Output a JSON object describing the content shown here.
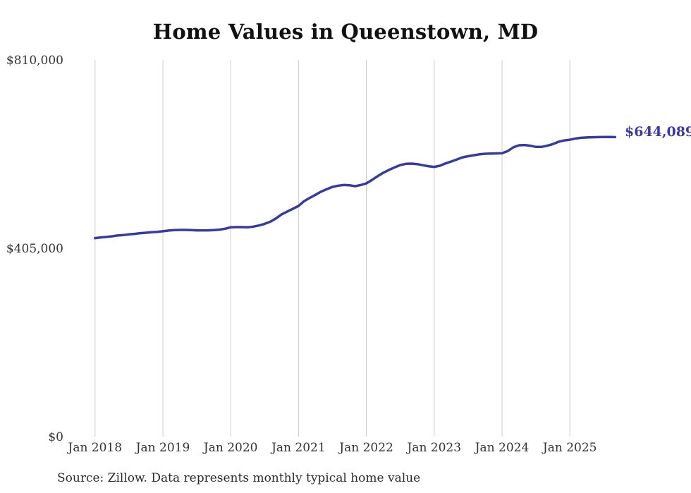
{
  "title": "Home Values in Queenstown, MD",
  "annotation": {
    "final_value_label": "$644,089"
  },
  "source_note": "Source: Zillow. Data represents monthly typical home value",
  "colors": {
    "line": "#3a3a9b",
    "annotation_text": "#3a3a9b",
    "gridline": "#cccccc",
    "axis_text": "#333333",
    "title_text": "#111111",
    "background": "#ffffff"
  },
  "chart_data": {
    "type": "line",
    "title": "Home Values in Queenstown, MD",
    "xlabel": "",
    "ylabel": "",
    "ylim": [
      0,
      810000
    ],
    "grid": "vertical-only",
    "legend": "none",
    "y_ticks": [
      {
        "label": "$0",
        "value": 0
      },
      {
        "label": "$405,000",
        "value": 405000
      },
      {
        "label": "$810,000",
        "value": 810000
      }
    ],
    "x_tick_labels": [
      "Jan 2018",
      "Jan 2019",
      "Jan 2020",
      "Jan 2021",
      "Jan 2022",
      "Jan 2023",
      "Jan 2024",
      "Jan 2025"
    ],
    "series": [
      {
        "name": "Monthly typical home value",
        "start_month": "2018-01",
        "end_month": "2025-09",
        "final_value": 644089,
        "final_label": "$644,089",
        "values": [
          426800,
          428300,
          429300,
          430800,
          432400,
          433400,
          434900,
          435900,
          437400,
          438400,
          439500,
          440400,
          441500,
          443000,
          444000,
          444500,
          444500,
          444000,
          443500,
          443500,
          443500,
          444000,
          445000,
          447000,
          450000,
          450500,
          450500,
          450000,
          451500,
          454000,
          457500,
          462000,
          469000,
          478000,
          484000,
          490000,
          496000,
          506500,
          513500,
          520000,
          527000,
          532000,
          537000,
          539500,
          541000,
          540500,
          538500,
          541000,
          544600,
          552000,
          560000,
          567500,
          573500,
          579000,
          584000,
          586600,
          587000,
          586000,
          583500,
          581400,
          580000,
          582500,
          587500,
          591500,
          596000,
          600500,
          603000,
          605000,
          607000,
          608300,
          608700,
          609000,
          609300,
          614000,
          622000,
          626500,
          627000,
          625500,
          623000,
          623000,
          625500,
          629000,
          634000,
          637000,
          638500,
          641000,
          642500,
          643300,
          643800,
          644000,
          644200,
          644150,
          644089
        ]
      }
    ]
  }
}
